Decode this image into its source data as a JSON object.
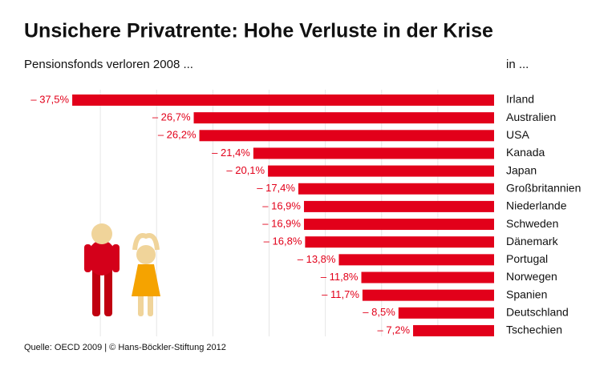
{
  "chart_data": {
    "type": "bar",
    "orientation": "horizontal",
    "title": "Unsichere Privatrente: Hohe Verluste in der Krise",
    "subtitle": "Pensionsfonds verloren 2008 ...",
    "category_header": "in ...",
    "source": "Quelle: OECD 2009 | © Hans-Böckler-Stiftung 2012",
    "categories": [
      "Irland",
      "Australien",
      "USA",
      "Kanada",
      "Japan",
      "Großbritannien",
      "Niederlande",
      "Schweden",
      "Dänemark",
      "Portugal",
      "Norwegen",
      "Spanien",
      "Deutschland",
      "Tschechien"
    ],
    "values": [
      -37.5,
      -26.7,
      -26.2,
      -21.4,
      -20.1,
      -17.4,
      -16.9,
      -16.9,
      -16.8,
      -13.8,
      -11.8,
      -11.7,
      -8.5,
      -7.2
    ],
    "value_labels": [
      "– 37,5%",
      "– 26,7%",
      "– 26,2%",
      "– 21,4%",
      "– 20,1%",
      "– 17,4%",
      "– 16,9%",
      "– 16,9%",
      "– 16,8%",
      "– 13,8%",
      "– 11,8%",
      "– 11,7%",
      "– 8,5%",
      "– 7,2%"
    ],
    "color": "#e2001a",
    "xlim": [
      -40,
      0
    ],
    "xticks": [
      -35,
      -30,
      -25,
      -20,
      -15,
      -10,
      -5
    ],
    "grid": true
  }
}
